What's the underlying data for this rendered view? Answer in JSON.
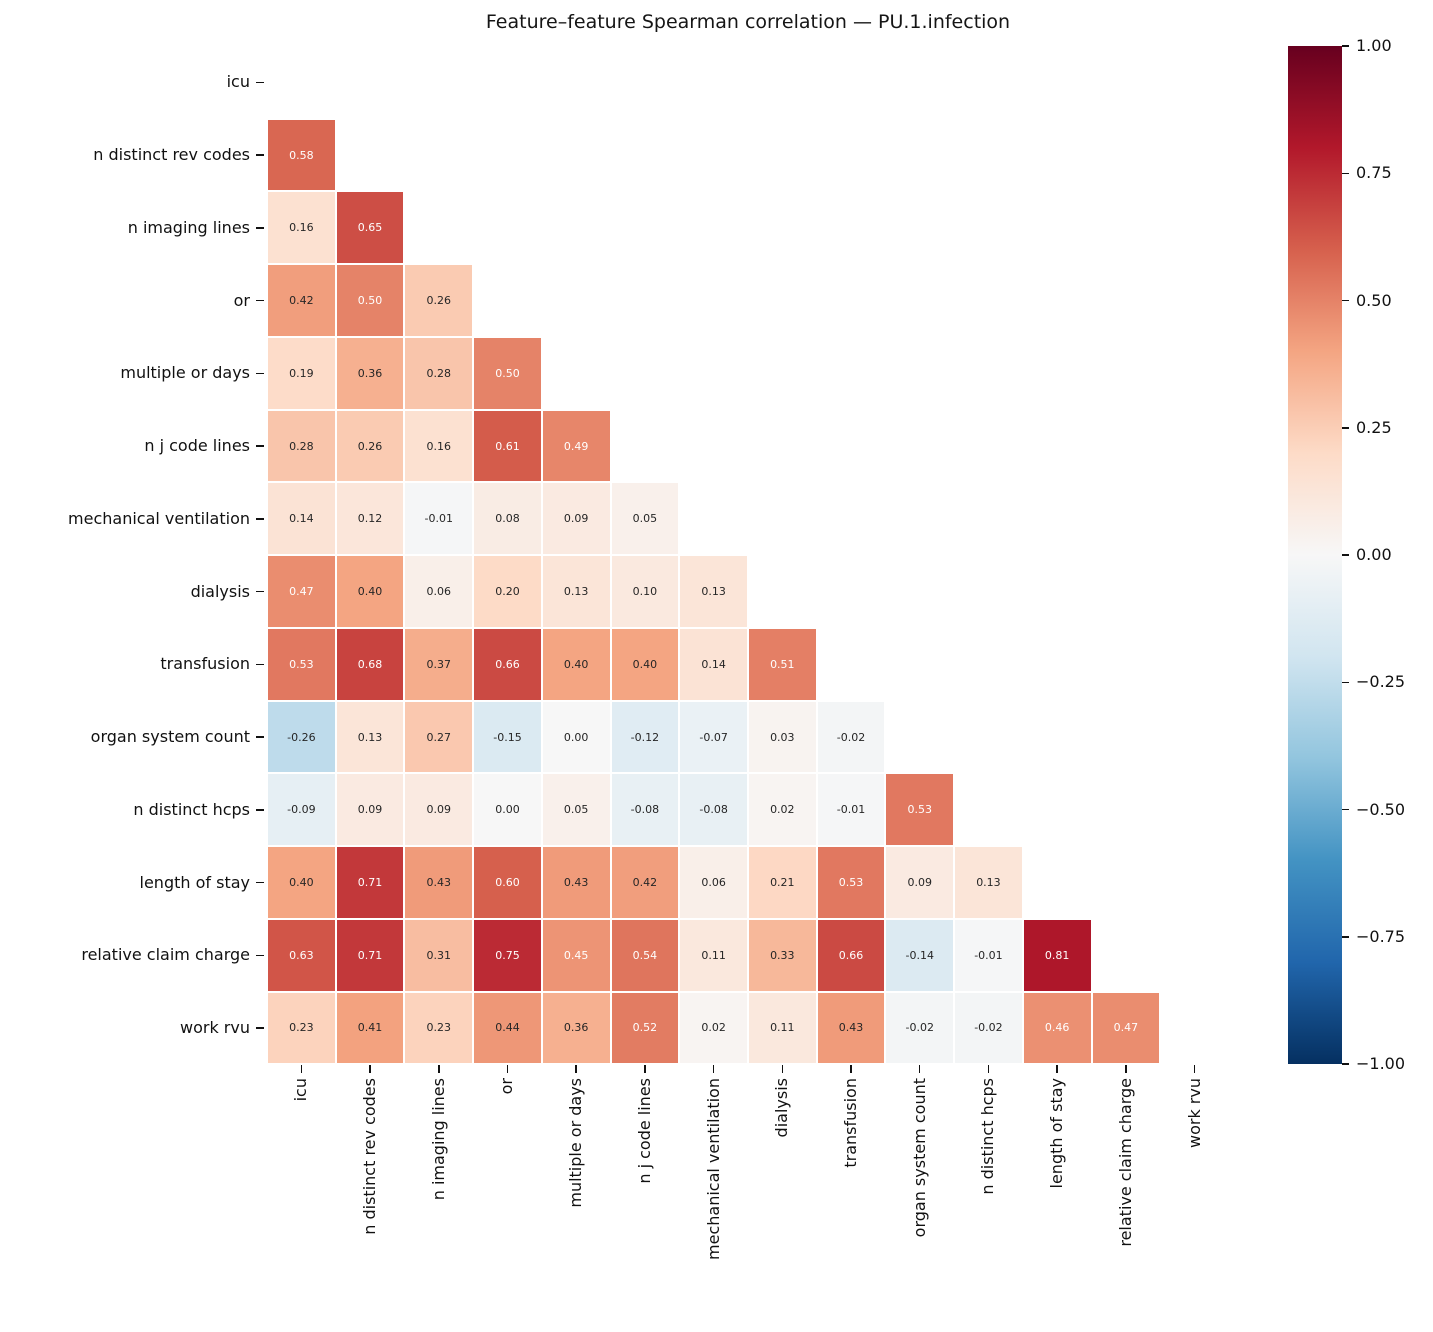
{
  "title": "Feature–feature Spearman correlation — PU.1.infection",
  "colors": {
    "background": "#ffffff",
    "annotation_dark": "#262626",
    "annotation_light": "#ffffff",
    "axis_text": "#111111",
    "gridline": "#ffffff"
  },
  "chart_data": {
    "type": "heatmap",
    "title": "Feature–feature Spearman correlation — PU.1.infection",
    "xlabel": "",
    "ylabel": "",
    "mask": "upper triangle and diagonal hidden",
    "colormap": "RdBu_r",
    "vmin": -1,
    "vmax": 1,
    "annotation_format": ".2f",
    "colormap_stops": [
      "#053061",
      "#2166ac",
      "#4393c3",
      "#92c5de",
      "#d1e5f0",
      "#f7f7f7",
      "#fddbc7",
      "#f4a582",
      "#d6604d",
      "#b2182b",
      "#67001f"
    ],
    "labels": [
      "icu",
      "n distinct rev codes",
      "n imaging lines",
      "or",
      "multiple or days",
      "n j code lines",
      "mechanical ventilation",
      "dialysis",
      "transfusion",
      "organ system count",
      "n distinct hcps",
      "length of stay",
      "relative claim charge",
      "work rvu"
    ],
    "rows": [
      {
        "label": "icu",
        "values": []
      },
      {
        "label": "n distinct rev codes",
        "values": [
          0.58
        ]
      },
      {
        "label": "n imaging lines",
        "values": [
          0.16,
          0.65
        ]
      },
      {
        "label": "or",
        "values": [
          0.42,
          0.5,
          0.26
        ]
      },
      {
        "label": "multiple or days",
        "values": [
          0.19,
          0.36,
          0.28,
          0.5
        ]
      },
      {
        "label": "n j code lines",
        "values": [
          0.28,
          0.26,
          0.16,
          0.61,
          0.49
        ]
      },
      {
        "label": "mechanical ventilation",
        "values": [
          0.14,
          0.12,
          -0.01,
          0.08,
          0.09,
          0.05
        ]
      },
      {
        "label": "dialysis",
        "values": [
          0.47,
          0.4,
          0.06,
          0.2,
          0.13,
          0.1,
          0.13
        ]
      },
      {
        "label": "transfusion",
        "values": [
          0.53,
          0.68,
          0.37,
          0.66,
          0.4,
          0.4,
          0.14,
          0.51
        ]
      },
      {
        "label": "organ system count",
        "values": [
          -0.26,
          0.13,
          0.27,
          -0.15,
          0.0,
          -0.12,
          -0.07,
          0.03,
          -0.02
        ]
      },
      {
        "label": "n distinct hcps",
        "values": [
          -0.09,
          0.09,
          0.09,
          0.0,
          0.05,
          -0.08,
          -0.08,
          0.02,
          -0.01,
          0.53
        ]
      },
      {
        "label": "length of stay",
        "values": [
          0.4,
          0.71,
          0.43,
          0.6,
          0.43,
          0.42,
          0.06,
          0.21,
          0.53,
          0.09,
          0.13
        ]
      },
      {
        "label": "relative claim charge",
        "values": [
          0.63,
          0.71,
          0.31,
          0.75,
          0.45,
          0.54,
          0.11,
          0.33,
          0.66,
          -0.14,
          -0.01,
          0.81
        ]
      },
      {
        "label": "work rvu",
        "values": [
          0.23,
          0.41,
          0.23,
          0.44,
          0.36,
          0.52,
          0.02,
          0.11,
          0.43,
          -0.02,
          -0.02,
          0.46,
          0.47
        ]
      }
    ],
    "colorbar": {
      "tick_labels": [
        "1.00",
        "0.75",
        "0.50",
        "0.25",
        "0.00",
        "−0.25",
        "−0.50",
        "−0.75",
        "−1.00"
      ],
      "tick_values": [
        1,
        0.75,
        0.5,
        0.25,
        0,
        -0.25,
        -0.5,
        -0.75,
        -1
      ],
      "position": "right"
    },
    "legend": "none",
    "grid": false
  }
}
